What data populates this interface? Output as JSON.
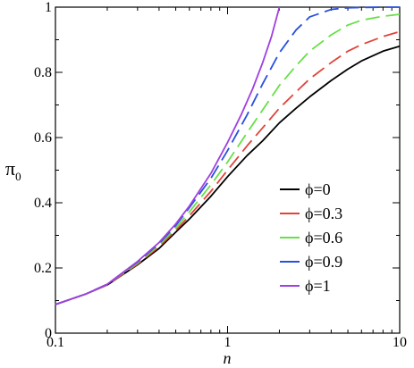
{
  "chart_data": {
    "type": "line",
    "xlabel": "n",
    "ylabel": "π",
    "ylabel_sub": "0",
    "xscale": "log",
    "xlim": [
      0.1,
      10
    ],
    "ylim": [
      0,
      1
    ],
    "grid": false,
    "legend_position": "bottom-right",
    "xticks": [
      {
        "value": 0.1,
        "label": "0.1"
      },
      {
        "value": 1,
        "label": "1"
      },
      {
        "value": 10,
        "label": "10"
      }
    ],
    "yticks": [
      {
        "value": 0,
        "label": "0"
      },
      {
        "value": 0.2,
        "label": "0.2"
      },
      {
        "value": 0.4,
        "label": "0.4"
      },
      {
        "value": 0.6,
        "label": "0.6"
      },
      {
        "value": 0.8,
        "label": "0.8"
      },
      {
        "value": 1,
        "label": "1"
      }
    ],
    "series": [
      {
        "name": "ϕ=0",
        "color": "#000000",
        "dash": "solid",
        "x": [
          0.1,
          0.15,
          0.2,
          0.3,
          0.4,
          0.5,
          0.6,
          0.8,
          1.0,
          1.3,
          1.6,
          2.0,
          2.5,
          3.0,
          4.0,
          5.0,
          6.0,
          8.0,
          10.0
        ],
        "y": [
          0.088,
          0.12,
          0.148,
          0.21,
          0.26,
          0.31,
          0.35,
          0.42,
          0.48,
          0.545,
          0.59,
          0.645,
          0.69,
          0.725,
          0.775,
          0.81,
          0.835,
          0.865,
          0.88
        ]
      },
      {
        "name": "ϕ=0.3",
        "color": "#e0443a",
        "dash": "dashed",
        "x": [
          0.1,
          0.15,
          0.2,
          0.3,
          0.4,
          0.5,
          0.6,
          0.8,
          1.0,
          1.3,
          1.6,
          2.0,
          2.5,
          3.0,
          4.0,
          5.0,
          6.0,
          8.0,
          10.0
        ],
        "y": [
          0.088,
          0.12,
          0.148,
          0.212,
          0.265,
          0.315,
          0.36,
          0.435,
          0.5,
          0.575,
          0.63,
          0.69,
          0.74,
          0.78,
          0.83,
          0.865,
          0.885,
          0.91,
          0.925
        ]
      },
      {
        "name": "ϕ=0.6",
        "color": "#66e046",
        "dash": "dashed",
        "x": [
          0.1,
          0.15,
          0.2,
          0.3,
          0.4,
          0.5,
          0.6,
          0.8,
          1.0,
          1.3,
          1.6,
          2.0,
          2.5,
          3.0,
          4.0,
          5.0,
          6.0,
          8.0,
          10.0
        ],
        "y": [
          0.088,
          0.12,
          0.15,
          0.215,
          0.27,
          0.322,
          0.372,
          0.455,
          0.525,
          0.615,
          0.685,
          0.76,
          0.82,
          0.865,
          0.915,
          0.945,
          0.96,
          0.972,
          0.978
        ]
      },
      {
        "name": "ϕ=0.9",
        "color": "#2850e0",
        "dash": "dashed",
        "x": [
          0.1,
          0.15,
          0.2,
          0.3,
          0.4,
          0.5,
          0.6,
          0.8,
          1.0,
          1.3,
          1.6,
          2.0,
          2.5,
          3.0,
          4.0,
          5.0,
          6.0,
          8.0,
          10.0
        ],
        "y": [
          0.088,
          0.12,
          0.15,
          0.218,
          0.275,
          0.33,
          0.385,
          0.475,
          0.56,
          0.67,
          0.765,
          0.86,
          0.93,
          0.97,
          0.993,
          0.998,
          0.999,
          1.0,
          1.0
        ]
      },
      {
        "name": "ϕ=1",
        "color": "#a040e0",
        "dash": "solid",
        "x": [
          0.1,
          0.15,
          0.2,
          0.3,
          0.4,
          0.5,
          0.6,
          0.8,
          1.0,
          1.2,
          1.4,
          1.6,
          1.8,
          2.0
        ],
        "y": [
          0.088,
          0.12,
          0.15,
          0.22,
          0.278,
          0.335,
          0.39,
          0.49,
          0.585,
          0.67,
          0.75,
          0.83,
          0.91,
          1.0
        ]
      }
    ]
  }
}
